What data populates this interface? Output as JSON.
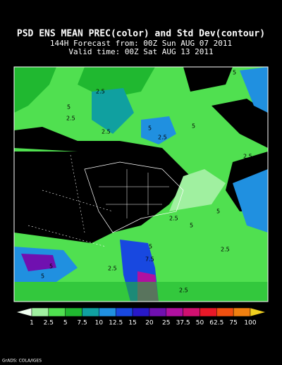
{
  "header": {
    "title": "PSD ENS MEAN PREC(color) and Std Dev(contour)",
    "forecast": "144H Forecast from: 00Z Sun AUG 07 2011",
    "valid": "Valid time: 00Z Sat AUG 13 2011"
  },
  "colorbar": {
    "levels": [
      1,
      2.5,
      5,
      7.5,
      10,
      12.5,
      15,
      20,
      25,
      37.5,
      50,
      62.5,
      75,
      100
    ],
    "colors": [
      "#f0fff0",
      "#a0f0a0",
      "#50e050",
      "#20b830",
      "#10a0a0",
      "#2090e0",
      "#1848e0",
      "#2818c8",
      "#7010b0",
      "#b010a0",
      "#d01070",
      "#e81828",
      "#f05010",
      "#f08010",
      "#f0d020"
    ]
  },
  "map": {
    "contour_labels": [
      "5",
      "2.5",
      "5",
      "2.5",
      "2.5",
      "2.5",
      "5",
      "2.5",
      "5",
      "2.5",
      "2.5",
      "5",
      "5",
      "2.5",
      "7.5",
      "5",
      "2.5",
      "5",
      "2.5",
      "5"
    ]
  },
  "footer": "GrADS: COLA/IGES"
}
